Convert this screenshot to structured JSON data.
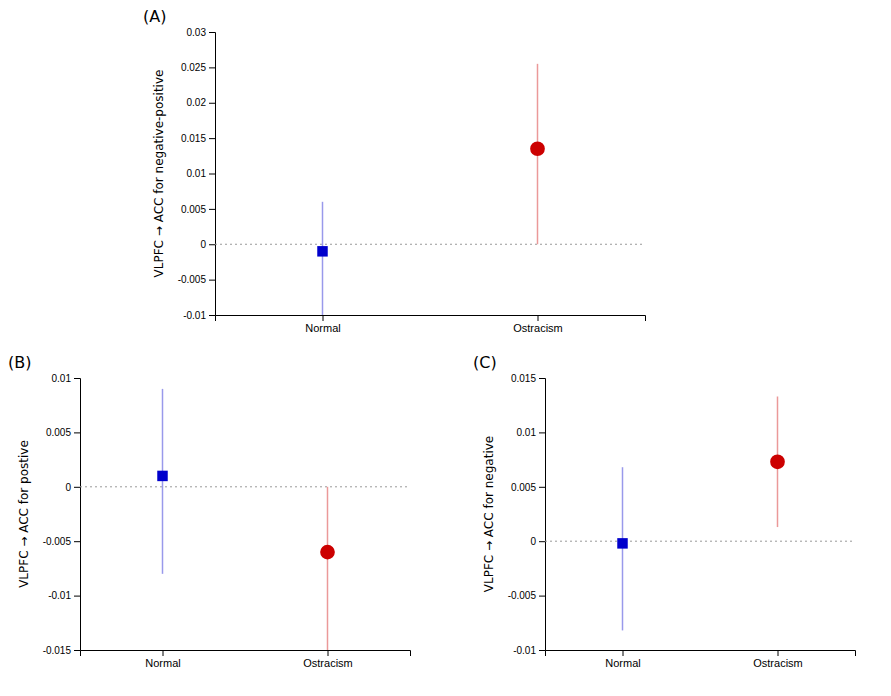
{
  "chart_data": [
    {
      "type": "errorbar",
      "title": "(A)",
      "y_label": "VLPFC → ACC for negative-positive",
      "categories": [
        "Normal",
        "Ostracism"
      ],
      "values": [
        -0.001,
        0.0135
      ],
      "yerr_low": [
        0.009,
        0.0135
      ],
      "yerr_high": [
        0.007,
        0.012
      ],
      "colors": [
        "#0000cc",
        "#cc0000"
      ],
      "ylim": [
        -0.01,
        0.03
      ],
      "yticks": [
        -0.01,
        -0.005,
        0,
        0.005,
        0.01,
        0.015,
        0.02,
        0.025,
        0.03
      ],
      "grid": false
    },
    {
      "type": "errorbar",
      "title": "(B)",
      "y_label": "VLPFC → ACC for postive",
      "categories": [
        "Normal",
        "Ostracism"
      ],
      "values": [
        0.001,
        -0.006
      ],
      "yerr_low": [
        0.009,
        0.009
      ],
      "yerr_high": [
        0.008,
        0.006
      ],
      "colors": [
        "#0000cc",
        "#cc0000"
      ],
      "ylim": [
        -0.015,
        0.01
      ],
      "yticks": [
        -0.015,
        -0.01,
        -0.005,
        0,
        0.005,
        0.01
      ],
      "grid": false
    },
    {
      "type": "errorbar",
      "title": "(C)",
      "y_label": "VLPFC → ACC for negative",
      "categories": [
        "Normal",
        "Ostracism"
      ],
      "values": [
        -0.0002,
        0.0073
      ],
      "yerr_low": [
        0.008,
        0.006
      ],
      "yerr_high": [
        0.007,
        0.006
      ],
      "colors": [
        "#0000cc",
        "#cc0000"
      ],
      "ylim": [
        -0.01,
        0.015
      ],
      "yticks": [
        -0.01,
        -0.005,
        0,
        0.005,
        0.01,
        0.015
      ],
      "grid": false
    }
  ]
}
